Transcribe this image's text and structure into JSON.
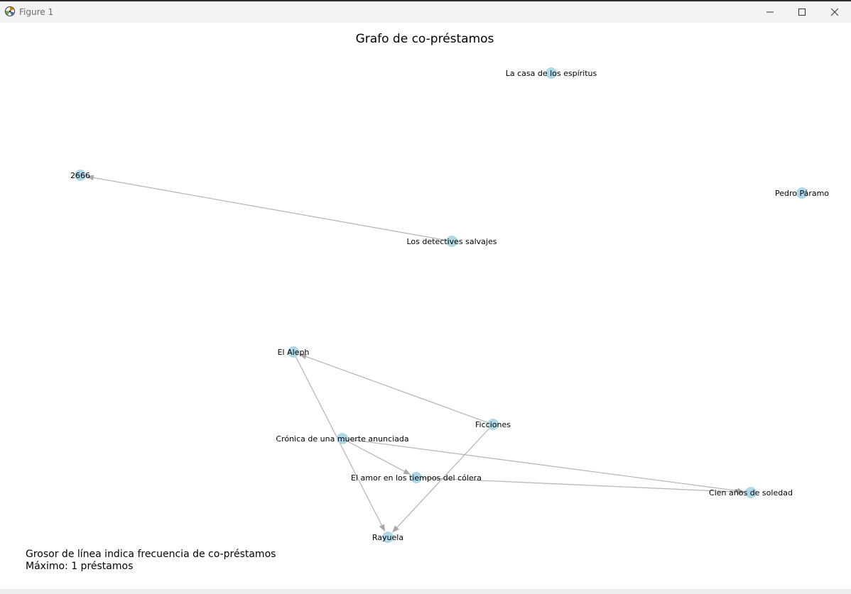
{
  "window": {
    "title": "Figure 1",
    "icons": {
      "app": "matplotlib-figure-icon",
      "minimize": "minimize-icon",
      "maximize": "maximize-icon",
      "close": "close-icon"
    }
  },
  "figure": {
    "title": "Grafo de co-préstamos",
    "caption": [
      "Grosor de línea indica frecuencia de co-préstamos",
      "Máximo: 1 préstamos"
    ]
  },
  "graph": {
    "directed": true,
    "colors": {
      "node": "#add8e6",
      "edge": "#b3b3b3",
      "label": "#000000"
    },
    "nodes": [
      {
        "id": "la-casa",
        "label": "La casa de los espíritus"
      },
      {
        "id": "2666",
        "label": "2666"
      },
      {
        "id": "pedro",
        "label": "Pedro Páramo"
      },
      {
        "id": "detectives",
        "label": "Los detectives salvajes"
      },
      {
        "id": "aleph",
        "label": "El Aleph"
      },
      {
        "id": "ficciones",
        "label": "Ficciones"
      },
      {
        "id": "cronica",
        "label": "Crónica de una muerte anunciada"
      },
      {
        "id": "amor",
        "label": "El amor en los tiempos del cólera"
      },
      {
        "id": "cien",
        "label": "Cien años de soledad"
      },
      {
        "id": "rayuela",
        "label": "Rayuela"
      }
    ],
    "edges": [
      {
        "source": "detectives",
        "target": "2666",
        "weight": 1
      },
      {
        "source": "ficciones",
        "target": "aleph",
        "weight": 1
      },
      {
        "source": "aleph",
        "target": "rayuela",
        "weight": 1
      },
      {
        "source": "ficciones",
        "target": "rayuela",
        "weight": 1
      },
      {
        "source": "cronica",
        "target": "amor",
        "weight": 1
      },
      {
        "source": "cronica",
        "target": "cien",
        "weight": 1
      },
      {
        "source": "amor",
        "target": "cien",
        "weight": 1
      }
    ]
  }
}
